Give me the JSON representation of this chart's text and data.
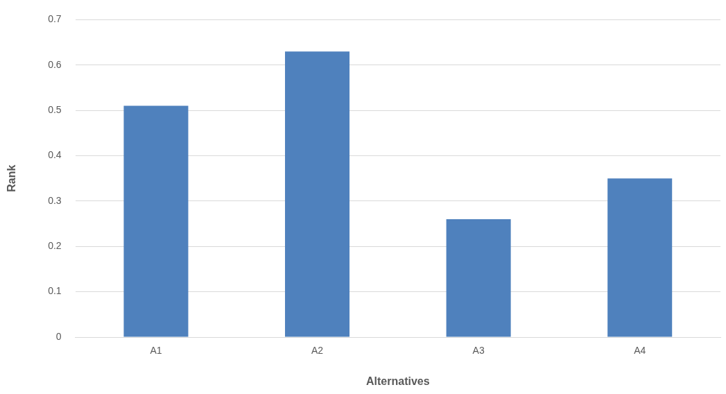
{
  "chart_data": {
    "type": "bar",
    "xlabel": "Alternatives",
    "ylabel": "Rank",
    "categories": [
      "A1",
      "A2",
      "A3",
      "A4"
    ],
    "series": [
      {
        "color": "#4f81bd",
        "values": [
          0.51,
          0.63,
          0.26,
          0.35
        ]
      }
    ],
    "ylim": [
      0,
      0.7
    ],
    "yticks": [
      0,
      0.1,
      0.2,
      0.3,
      0.4,
      0.5,
      0.6,
      0.7
    ],
    "grid": "y",
    "legend": false
  }
}
